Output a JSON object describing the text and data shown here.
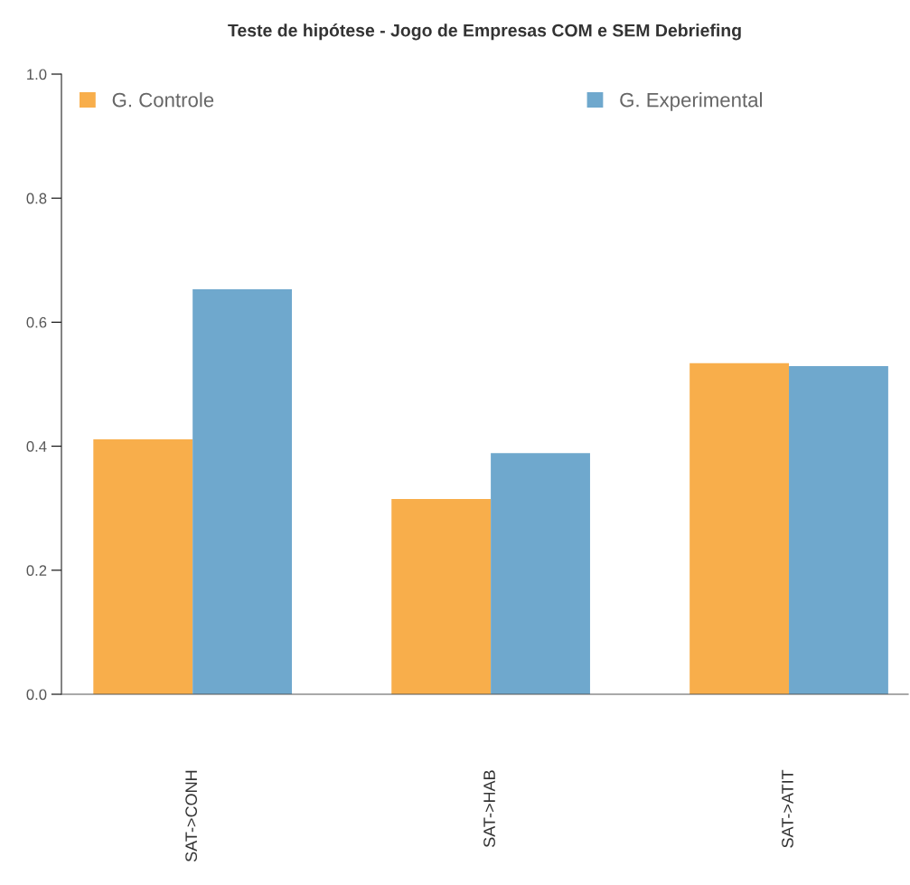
{
  "chart_data": {
    "type": "bar",
    "title": "Teste de hipótese - Jogo de Empresas COM e SEM Debriefing",
    "categories": [
      "SAT->CONH",
      "SAT->HAB",
      "SAT->ATIT"
    ],
    "series": [
      {
        "name": "G. Controle",
        "color": "#f8ae4b",
        "values": [
          0.411,
          0.315,
          0.534
        ]
      },
      {
        "name": "G. Experimental",
        "color": "#6fa8cd",
        "values": [
          0.653,
          0.389,
          0.529
        ]
      }
    ],
    "ylim": [
      0,
      1
    ],
    "yticks": [
      {
        "value": 0,
        "label": "0.0"
      },
      {
        "value": 0.2,
        "label": "0.2"
      },
      {
        "value": 0.4,
        "label": "0.4"
      },
      {
        "value": 0.6,
        "label": "0.6"
      },
      {
        "value": 0.8,
        "label": "0.8"
      },
      {
        "value": 1,
        "label": "1.0"
      }
    ],
    "grid": false,
    "legend": "top"
  }
}
